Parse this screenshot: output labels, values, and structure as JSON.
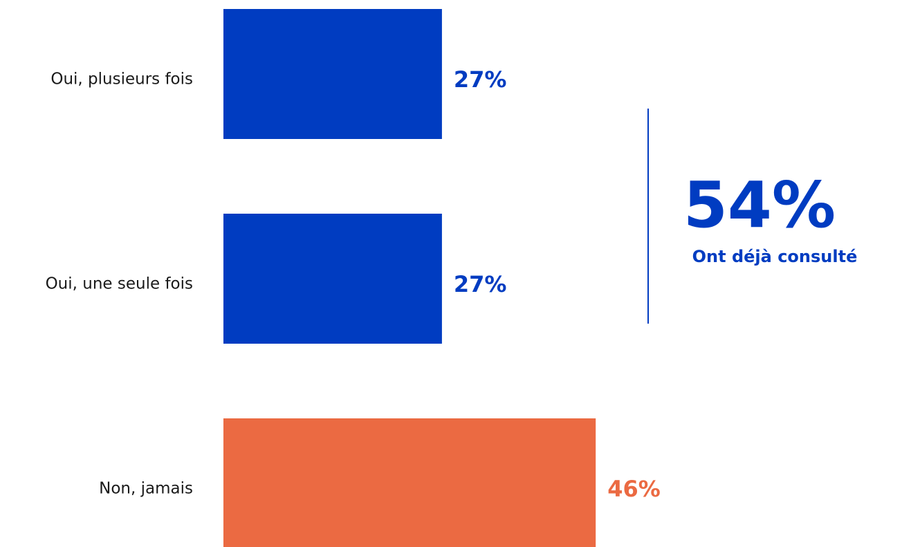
{
  "chart_data": {
    "type": "bar",
    "orientation": "horizontal",
    "categories": [
      "Oui, plusieurs fois",
      "Oui, une seule fois",
      "Non, jamais"
    ],
    "values": [
      27,
      27,
      46
    ],
    "value_labels": [
      "27%",
      "27%",
      "46%"
    ],
    "bar_colors": [
      "#003cc1",
      "#003cc1",
      "#eb6a42"
    ],
    "xlim": [
      0,
      100
    ],
    "grid": false,
    "annotation": {
      "value": "54%",
      "label": "Ont déjà consulté",
      "color": "#003cc1",
      "spans_categories": [
        "Oui, plusieurs fois",
        "Oui, une seule fois"
      ]
    }
  }
}
